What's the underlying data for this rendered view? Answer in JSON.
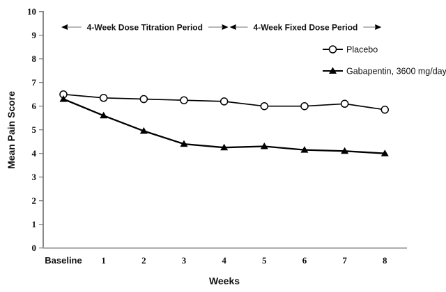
{
  "chart_data": {
    "type": "line",
    "title": "",
    "xlabel": "Weeks",
    "ylabel": "Mean Pain Score",
    "categories": [
      "Baseline",
      "1",
      "2",
      "3",
      "4",
      "5",
      "6",
      "7",
      "8"
    ],
    "yticks": [
      0,
      1,
      2,
      3,
      4,
      5,
      6,
      7,
      8,
      9,
      10
    ],
    "ylim": [
      0,
      10
    ],
    "grid": false,
    "legend_position": "upper right inside",
    "annotations": [
      {
        "label": "4-Week Dose Titration Period",
        "x_start": "Baseline",
        "x_end": "4"
      },
      {
        "label": "4-Week Fixed Dose Period",
        "x_start": "4",
        "x_end": "8"
      }
    ],
    "series": [
      {
        "name": "Placebo",
        "marker": "open-circle",
        "line_color": "#000000",
        "values": [
          6.5,
          6.35,
          6.3,
          6.25,
          6.2,
          6.0,
          6.0,
          6.1,
          5.85
        ]
      },
      {
        "name": "Gabapentin, 3600 mg/day",
        "marker": "filled-triangle",
        "line_color": "#000000",
        "values": [
          6.3,
          5.6,
          4.95,
          4.4,
          4.25,
          4.3,
          4.15,
          4.1,
          4.0
        ]
      }
    ],
    "colors": {
      "axis_y": "#7a7a7a",
      "axis_x": "#a3a3a3",
      "arrow_line": "#8c8c8c",
      "arrow_head": "#000000",
      "series": "#000000",
      "background": "#ffffff"
    }
  }
}
